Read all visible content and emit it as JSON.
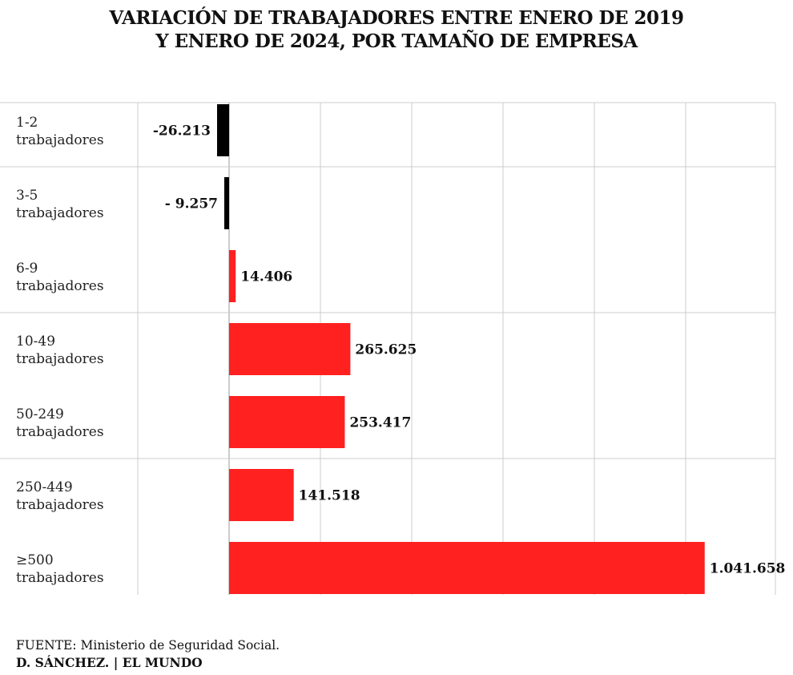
{
  "header": {
    "title_line1": "VARIACIÓN DE TRABAJADORES ENTRE ENERO DE 2019",
    "title_line2": "Y ENERO DE 2024, POR TAMAÑO DE EMPRESA"
  },
  "footer": {
    "source_key": "FUENTE:",
    "source_text": "Ministerio de Seguridad Social.",
    "credit_author": "D. SÁNCHEZ.",
    "credit_sep": "|",
    "credit_outlet": "EL MUNDO"
  },
  "colors": {
    "positive": "#ff2020",
    "negative": "#000000",
    "grid": "#cccccc"
  },
  "chart_data": {
    "type": "bar",
    "orientation": "horizontal",
    "title": "VARIACIÓN DE TRABAJADORES ENTRE ENERO DE 2019 Y ENERO DE 2024, POR TAMAÑO DE EMPRESA",
    "categories": [
      [
        "1-2",
        "trabajadores"
      ],
      [
        "3-5",
        "trabajadores"
      ],
      [
        "6-9",
        "trabajadores"
      ],
      [
        "10-49",
        "trabajadores"
      ],
      [
        "50-249",
        "trabajadores"
      ],
      [
        "250-449",
        "trabajadores"
      ],
      [
        "≥500",
        "trabajadores"
      ]
    ],
    "values": [
      -26213,
      -9257,
      14406,
      265625,
      253417,
      141518,
      1041658
    ],
    "value_labels": [
      "-26.213",
      "- 9.257",
      "14.406",
      "265.625",
      "253.417",
      "141.518",
      "1.041.658"
    ],
    "xlim": [
      -200000,
      1200000
    ],
    "grid": true,
    "group_separators_after": [
      0,
      2,
      4
    ]
  }
}
